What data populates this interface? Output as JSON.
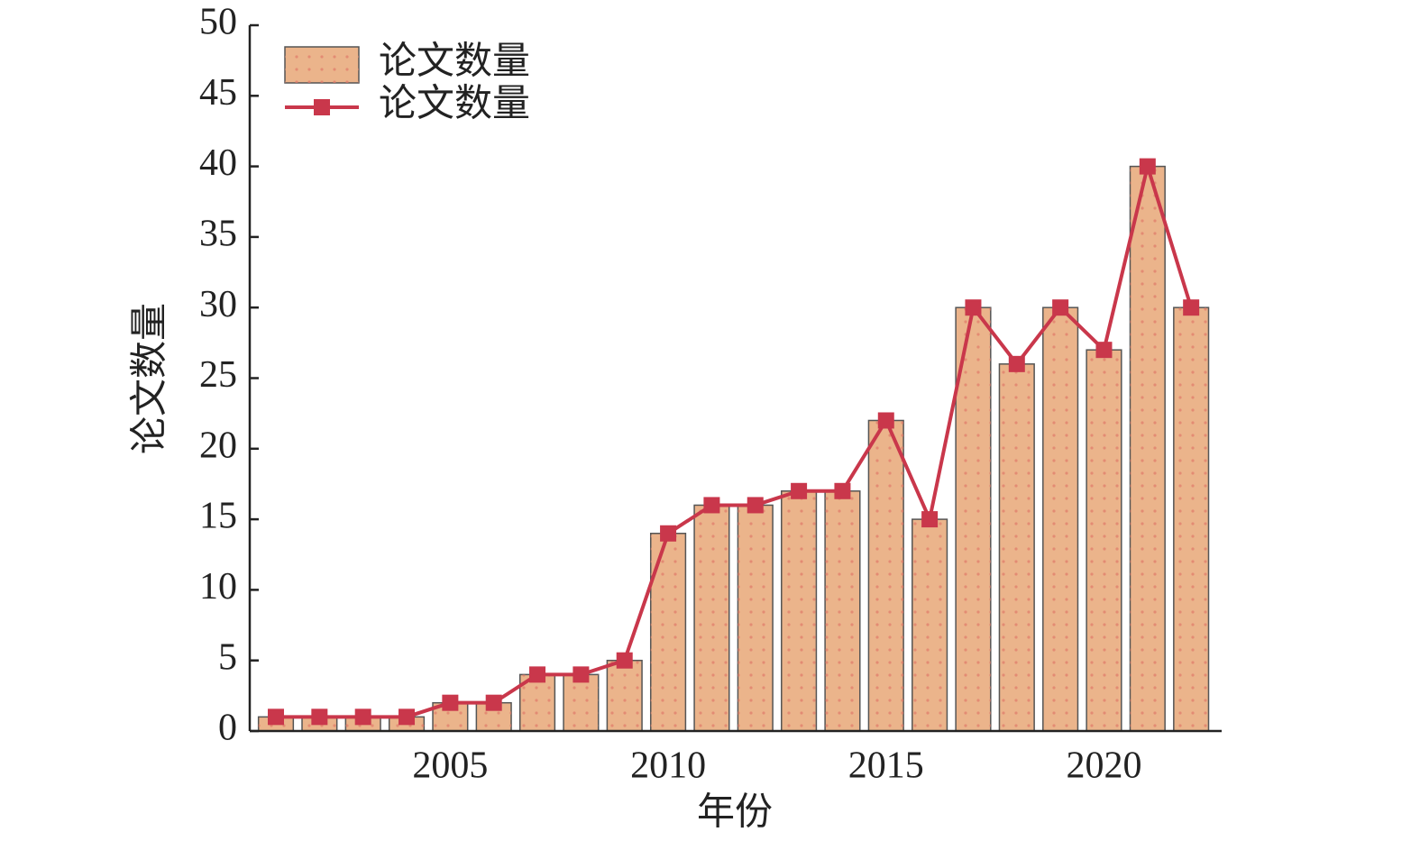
{
  "chart_data": {
    "type": "bar",
    "x_label": "年份",
    "y_label": "论文数量",
    "x": [
      2001,
      2002,
      2003,
      2004,
      2005,
      2006,
      2007,
      2008,
      2009,
      2010,
      2011,
      2012,
      2013,
      2014,
      2015,
      2016,
      2017,
      2018,
      2019,
      2020,
      2021,
      2022
    ],
    "series": [
      {
        "name": "论文数量",
        "type": "bar",
        "color": "#ebb48b",
        "values": [
          1,
          1,
          1,
          1,
          2,
          2,
          4,
          4,
          5,
          14,
          16,
          16,
          17,
          17,
          22,
          15,
          30,
          26,
          30,
          27,
          40,
          30
        ]
      },
      {
        "name": "论文数量",
        "type": "line",
        "color": "#c9374b",
        "values": [
          1,
          1,
          1,
          1,
          2,
          2,
          4,
          4,
          5,
          14,
          16,
          16,
          17,
          17,
          22,
          15,
          30,
          26,
          30,
          27,
          40,
          30
        ]
      }
    ],
    "xlim": [
      2000.4,
      2022.7
    ],
    "xticks": [
      2005,
      2010,
      2015,
      2020
    ],
    "ylim": [
      0,
      50
    ],
    "yticks": [
      0,
      5,
      10,
      15,
      20,
      25,
      30,
      35,
      40,
      45,
      50
    ],
    "legend": "upper-left",
    "grid": false
  }
}
